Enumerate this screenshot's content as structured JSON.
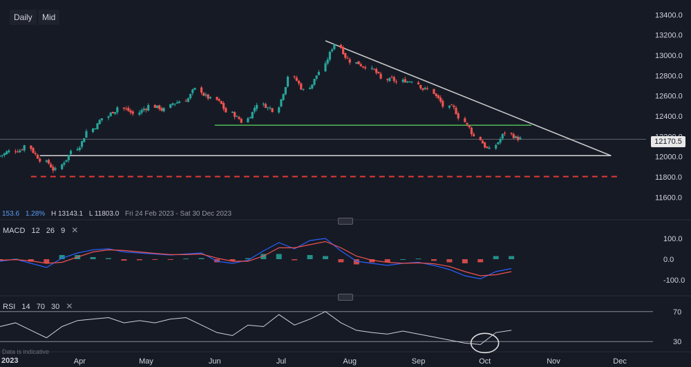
{
  "toolbar": {
    "timeframe": "Daily",
    "price_type": "Mid"
  },
  "info": {
    "change": "153.6",
    "change_pct": "1.28%",
    "high": "H 13143.1",
    "low": "L 11803.0",
    "range": "Fri 24 Feb 2023 - Sat 30 Dec 2023"
  },
  "last_price": "12170.5",
  "macd": {
    "name": "MACD",
    "fast": "12",
    "slow": "26",
    "signal": "9"
  },
  "rsi": {
    "name": "RSI",
    "period": "14",
    "upper": "70",
    "lower": "30"
  },
  "disclaimer": "Data is indicative",
  "year_label": "2023",
  "colors": {
    "background": "#161a25",
    "up": "#26a69a",
    "down": "#ef5350",
    "trendline": "#c9c9c9",
    "support_green": "#4caf50",
    "support_red": "#e53935",
    "macd_line": "#2962ff",
    "signal_line": "#ef5350"
  },
  "chart_data": [
    {
      "type": "candlestick",
      "x_ticks": [
        "Apr",
        "May",
        "Jun",
        "Jul",
        "Aug",
        "Sep",
        "Oct",
        "Nov",
        "Dec"
      ],
      "y_ticks": [
        "13400.0",
        "13200.0",
        "13000.0",
        "12800.0",
        "12600.0",
        "12400.0",
        "12200.0",
        "12000.0",
        "11800.0",
        "11600.0"
      ],
      "ylim": [
        11500,
        13450
      ],
      "points": [
        {
          "d": "2023-02-24",
          "c": 12050
        },
        {
          "d": "2023-03-03",
          "c": 12110
        },
        {
          "d": "2023-03-10",
          "c": 11980
        },
        {
          "d": "2023-03-17",
          "c": 11860
        },
        {
          "d": "2023-03-24",
          "c": 12060
        },
        {
          "d": "2023-03-31",
          "c": 12250
        },
        {
          "d": "2023-04-07",
          "c": 12380
        },
        {
          "d": "2023-04-14",
          "c": 12490
        },
        {
          "d": "2023-04-21",
          "c": 12420
        },
        {
          "d": "2023-04-28",
          "c": 12500
        },
        {
          "d": "2023-05-05",
          "c": 12460
        },
        {
          "d": "2023-05-12",
          "c": 12550
        },
        {
          "d": "2023-05-19",
          "c": 12660
        },
        {
          "d": "2023-05-26",
          "c": 12560
        },
        {
          "d": "2023-06-02",
          "c": 12440
        },
        {
          "d": "2023-06-09",
          "c": 12350
        },
        {
          "d": "2023-06-16",
          "c": 12530
        },
        {
          "d": "2023-06-23",
          "c": 12470
        },
        {
          "d": "2023-06-30",
          "c": 12800
        },
        {
          "d": "2023-07-07",
          "c": 12650
        },
        {
          "d": "2023-07-14",
          "c": 12840
        },
        {
          "d": "2023-07-21",
          "c": 13120
        },
        {
          "d": "2023-07-28",
          "c": 12950
        },
        {
          "d": "2023-08-04",
          "c": 12900
        },
        {
          "d": "2023-08-11",
          "c": 12760
        },
        {
          "d": "2023-08-18",
          "c": 12730
        },
        {
          "d": "2023-08-25",
          "c": 12760
        },
        {
          "d": "2023-09-01",
          "c": 12660
        },
        {
          "d": "2023-09-08",
          "c": 12500
        },
        {
          "d": "2023-09-15",
          "c": 12400
        },
        {
          "d": "2023-09-22",
          "c": 12200
        },
        {
          "d": "2023-09-29",
          "c": 12060
        },
        {
          "d": "2023-10-06",
          "c": 12240
        },
        {
          "d": "2023-10-13",
          "c": 12170
        }
      ],
      "annotations": [
        {
          "type": "trendline",
          "from": {
            "d": "2023-07-21",
            "v": 13143
          },
          "to": {
            "d": "2023-11-27",
            "v": 12010
          }
        },
        {
          "type": "trendline",
          "from": {
            "d": "2023-03-14",
            "v": 12010
          },
          "to": {
            "d": "2023-11-27",
            "v": 12010
          }
        },
        {
          "type": "support",
          "from": {
            "d": "2023-06-01",
            "v": 12310
          },
          "to": {
            "d": "2023-10-22",
            "v": 12310
          }
        },
        {
          "type": "support",
          "from": {
            "d": "2023-03-10",
            "v": 11803
          },
          "to": {
            "d": "2023-11-30",
            "v": 11803
          }
        }
      ]
    },
    {
      "type": "macd",
      "y_ticks": [
        "100.0",
        "0.0",
        "-100.0"
      ],
      "ylim": [
        -150,
        150
      ],
      "macd": [
        -10,
        0,
        -20,
        -40,
        5,
        30,
        45,
        50,
        35,
        30,
        25,
        20,
        25,
        30,
        -10,
        -20,
        -5,
        40,
        80,
        50,
        90,
        100,
        40,
        -10,
        -20,
        -30,
        -20,
        -15,
        -30,
        -50,
        -80,
        -95,
        -60,
        -45
      ],
      "signal": [
        -5,
        -2,
        -8,
        -20,
        -15,
        10,
        35,
        45,
        42,
        35,
        28,
        22,
        22,
        25,
        5,
        -10,
        -10,
        15,
        55,
        55,
        70,
        85,
        55,
        15,
        -5,
        -15,
        -20,
        -18,
        -22,
        -35,
        -60,
        -80,
        -75,
        -60
      ]
    },
    {
      "type": "rsi",
      "y_ticks": [
        "70",
        "30"
      ],
      "ylim": [
        20,
        80
      ],
      "values": [
        50,
        55,
        45,
        35,
        50,
        58,
        60,
        62,
        55,
        58,
        55,
        60,
        62,
        52,
        42,
        38,
        52,
        50,
        66,
        52,
        60,
        70,
        55,
        45,
        42,
        40,
        44,
        40,
        36,
        32,
        28,
        26,
        42,
        45
      ]
    }
  ]
}
